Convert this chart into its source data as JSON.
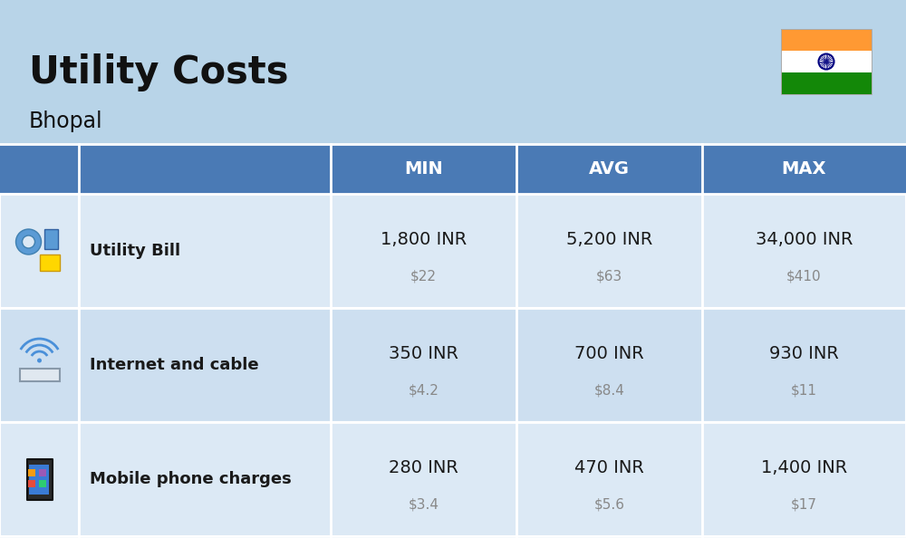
{
  "title": "Utility Costs",
  "subtitle": "Bhopal",
  "background_color": "#b8d4e8",
  "header_color": "#4a7ab5",
  "header_text_color": "#ffffff",
  "row_color_1": "#dce9f5",
  "row_color_2": "#cddff0",
  "divider_color": "#ffffff",
  "col_headers": [
    "MIN",
    "AVG",
    "MAX"
  ],
  "rows": [
    {
      "label": "Utility Bill",
      "min_inr": "1,800 INR",
      "min_usd": "$22",
      "avg_inr": "5,200 INR",
      "avg_usd": "$63",
      "max_inr": "34,000 INR",
      "max_usd": "$410"
    },
    {
      "label": "Internet and cable",
      "min_inr": "350 INR",
      "min_usd": "$4.2",
      "avg_inr": "700 INR",
      "avg_usd": "$8.4",
      "max_inr": "930 INR",
      "max_usd": "$11"
    },
    {
      "label": "Mobile phone charges",
      "min_inr": "280 INR",
      "min_usd": "$3.4",
      "avg_inr": "470 INR",
      "avg_usd": "$5.6",
      "max_inr": "1,400 INR",
      "max_usd": "$17"
    }
  ],
  "flag_colors": [
    "#ff9933",
    "#ffffff",
    "#138808"
  ],
  "flag_chakra_color": "#000080",
  "title_fontsize": 30,
  "subtitle_fontsize": 17,
  "header_fontsize": 14,
  "label_fontsize": 13,
  "inr_fontsize": 14,
  "usd_fontsize": 11
}
